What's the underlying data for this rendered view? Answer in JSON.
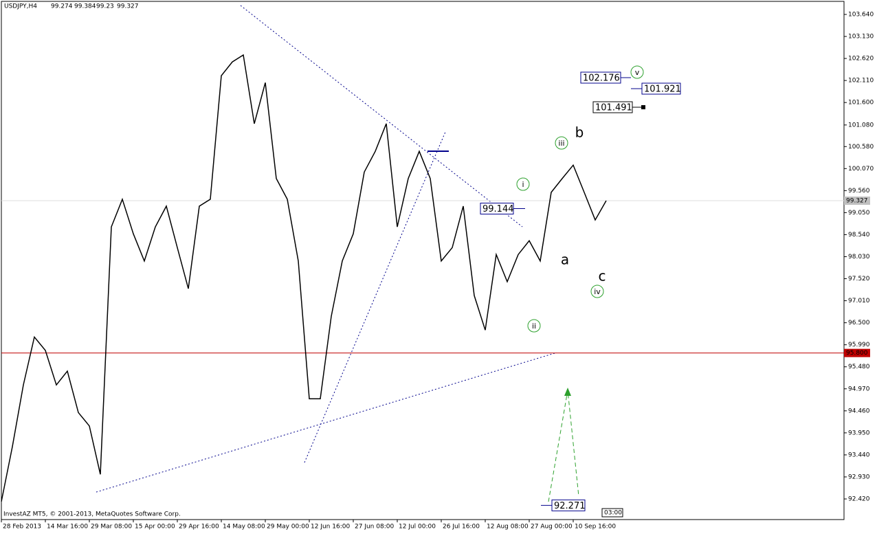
{
  "chart_data": {
    "type": "line",
    "symbol": "USDJPY,H4",
    "ohlc": [
      99.274,
      99.384,
      99.23,
      99.327
    ],
    "footer": "InvestAZ MT5, © 2001-2013, MetaQuotes Software Corp.",
    "color": "#000000",
    "categories": [
      "28 Feb 2013",
      null,
      null,
      null,
      "14 Mar 16:00",
      null,
      null,
      null,
      "29 Mar 08:00",
      null,
      null,
      null,
      "15 Apr 00:00",
      null,
      null,
      null,
      "29 Apr 16:00",
      null,
      null,
      null,
      "14 May 08:00",
      null,
      null,
      null,
      "29 May 00:00",
      null,
      null,
      null,
      "12 Jun 16:00",
      null,
      null,
      null,
      "27 Jun 08:00",
      null,
      null,
      null,
      "12 Jul 00:00",
      null,
      null,
      null,
      "26 Jul 16:00",
      null,
      null,
      null,
      "12 Aug 08:00",
      null,
      null,
      null,
      "27 Aug 00:00",
      null,
      null,
      null,
      "10 Sep 16:00",
      null,
      null,
      null
    ],
    "values": [
      92.36,
      93.63,
      95.06,
      96.17,
      95.86,
      95.06,
      95.38,
      94.42,
      94.11,
      92.99,
      98.72,
      99.36,
      98.56,
      97.93,
      98.72,
      99.2,
      98.24,
      97.29,
      99.2,
      99.36,
      102.22,
      102.54,
      102.7,
      101.11,
      102.06,
      99.84,
      99.36,
      97.93,
      94.74,
      94.74,
      96.65,
      97.93,
      98.56,
      99.99,
      100.47,
      101.11,
      98.72,
      99.84,
      100.47,
      99.84,
      97.93,
      98.24,
      99.2,
      97.13,
      96.33,
      98.08,
      97.45,
      98.08,
      98.4,
      97.93,
      99.52,
      99.84,
      100.15,
      99.52,
      98.88,
      99.327
    ],
    "ylim": [
      92.006,
      103.974
    ],
    "yticks": [
      {
        "value": 103.64,
        "label": "103.640"
      },
      {
        "value": 103.13,
        "label": "103.130"
      },
      {
        "value": 102.62,
        "label": "102.620"
      },
      {
        "value": 102.11,
        "label": "102.110"
      },
      {
        "value": 101.6,
        "label": "101.600"
      },
      {
        "value": 101.08,
        "label": "101.080"
      },
      {
        "value": 100.58,
        "label": "100.580"
      },
      {
        "value": 100.07,
        "label": "100.070"
      },
      {
        "value": 99.56,
        "label": "99.560"
      },
      {
        "value": 99.05,
        "label": "99.050"
      },
      {
        "value": 98.54,
        "label": "98.540"
      },
      {
        "value": 98.03,
        "label": "98.030"
      },
      {
        "value": 97.52,
        "label": "97.520"
      },
      {
        "value": 97.01,
        "label": "97.010"
      },
      {
        "value": 96.5,
        "label": "96.500"
      },
      {
        "value": 95.99,
        "label": "95.990"
      },
      {
        "value": 95.48,
        "label": "95.480"
      },
      {
        "value": 94.97,
        "label": "94.970"
      },
      {
        "value": 94.46,
        "label": "94.460"
      },
      {
        "value": 93.95,
        "label": "93.950"
      },
      {
        "value": 93.44,
        "label": "93.440"
      },
      {
        "value": 92.93,
        "label": "92.930"
      },
      {
        "value": 92.42,
        "label": "92.420"
      }
    ],
    "hline": {
      "value": 95.8,
      "label": "95.800"
    },
    "levels": [
      102.176,
      101.921,
      101.491,
      99.144,
      92.271
    ],
    "wave_labels": [
      "i",
      "ii",
      "iii",
      "iv",
      "v",
      "a",
      "b",
      "c"
    ],
    "time_marker": "03:00"
  }
}
